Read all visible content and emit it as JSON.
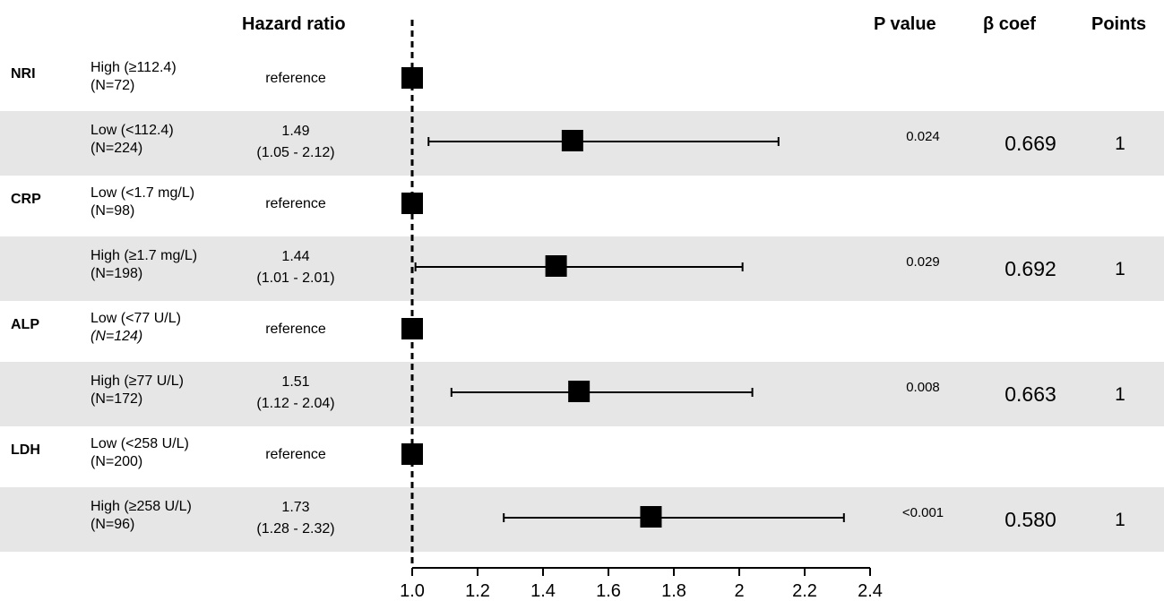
{
  "headers": {
    "hazard_ratio": "Hazard ratio",
    "p_value": "P value",
    "beta_coef": "β coef",
    "points": "Points"
  },
  "rows": [
    {
      "variable": "NRI",
      "level": "High (≥112.4)",
      "n": "(N=72)",
      "hr": "reference",
      "ci": "",
      "p": "",
      "beta": "",
      "points": "",
      "shaded": false
    },
    {
      "variable": "",
      "level": "Low (<112.4)",
      "n": "(N=224)",
      "hr": "1.49",
      "ci": "(1.05 - 2.12)",
      "p": "0.024",
      "beta": "0.669",
      "points": "1",
      "shaded": true
    },
    {
      "variable": "CRP",
      "level": "Low (<1.7 mg/L)",
      "n": "(N=98)",
      "hr": "reference",
      "ci": "",
      "p": "",
      "beta": "",
      "points": "",
      "shaded": false
    },
    {
      "variable": "",
      "level": "High (≥1.7 mg/L)",
      "n": "(N=198)",
      "hr": "1.44",
      "ci": "(1.01 - 2.01)",
      "p": "0.029",
      "beta": "0.692",
      "points": "1",
      "shaded": true
    },
    {
      "variable": "ALP",
      "level": "Low (<77 U/L)",
      "n": "(N=124)",
      "hr": "reference",
      "ci": "",
      "p": "",
      "beta": "",
      "points": "",
      "shaded": false
    },
    {
      "variable": "",
      "level": "High (≥77 U/L)",
      "n": "(N=172)",
      "hr": "1.51",
      "ci": "(1.12 - 2.04)",
      "p": "0.008",
      "beta": "0.663",
      "points": "1",
      "shaded": true
    },
    {
      "variable": "LDH",
      "level": "Low (<258 U/L)",
      "n": "(N=200)",
      "hr": "reference",
      "ci": "",
      "p": "",
      "beta": "",
      "points": "",
      "shaded": false
    },
    {
      "variable": "",
      "level": "High (≥258 U/L)",
      "n": "(N=96)",
      "hr": "1.73",
      "ci": "(1.28 - 2.32)",
      "p": "<0.001",
      "beta": "0.580",
      "points": "1",
      "shaded": true
    }
  ],
  "chart_data": {
    "type": "forest",
    "reference_line": 1.0,
    "xlim": [
      1.0,
      2.4
    ],
    "xticks": [
      "1.0",
      "1.2",
      "1.4",
      "1.6",
      "1.8",
      "2",
      "2.2",
      "2.4"
    ],
    "points": [
      {
        "row": 0,
        "hr": 1.0,
        "lower": null,
        "upper": null
      },
      {
        "row": 1,
        "hr": 1.49,
        "lower": 1.05,
        "upper": 2.12
      },
      {
        "row": 2,
        "hr": 1.0,
        "lower": null,
        "upper": null
      },
      {
        "row": 3,
        "hr": 1.44,
        "lower": 1.01,
        "upper": 2.01
      },
      {
        "row": 4,
        "hr": 1.0,
        "lower": null,
        "upper": null
      },
      {
        "row": 5,
        "hr": 1.51,
        "lower": 1.12,
        "upper": 2.04
      },
      {
        "row": 6,
        "hr": 1.0,
        "lower": null,
        "upper": null
      },
      {
        "row": 7,
        "hr": 1.73,
        "lower": 1.28,
        "upper": 2.32
      }
    ]
  }
}
